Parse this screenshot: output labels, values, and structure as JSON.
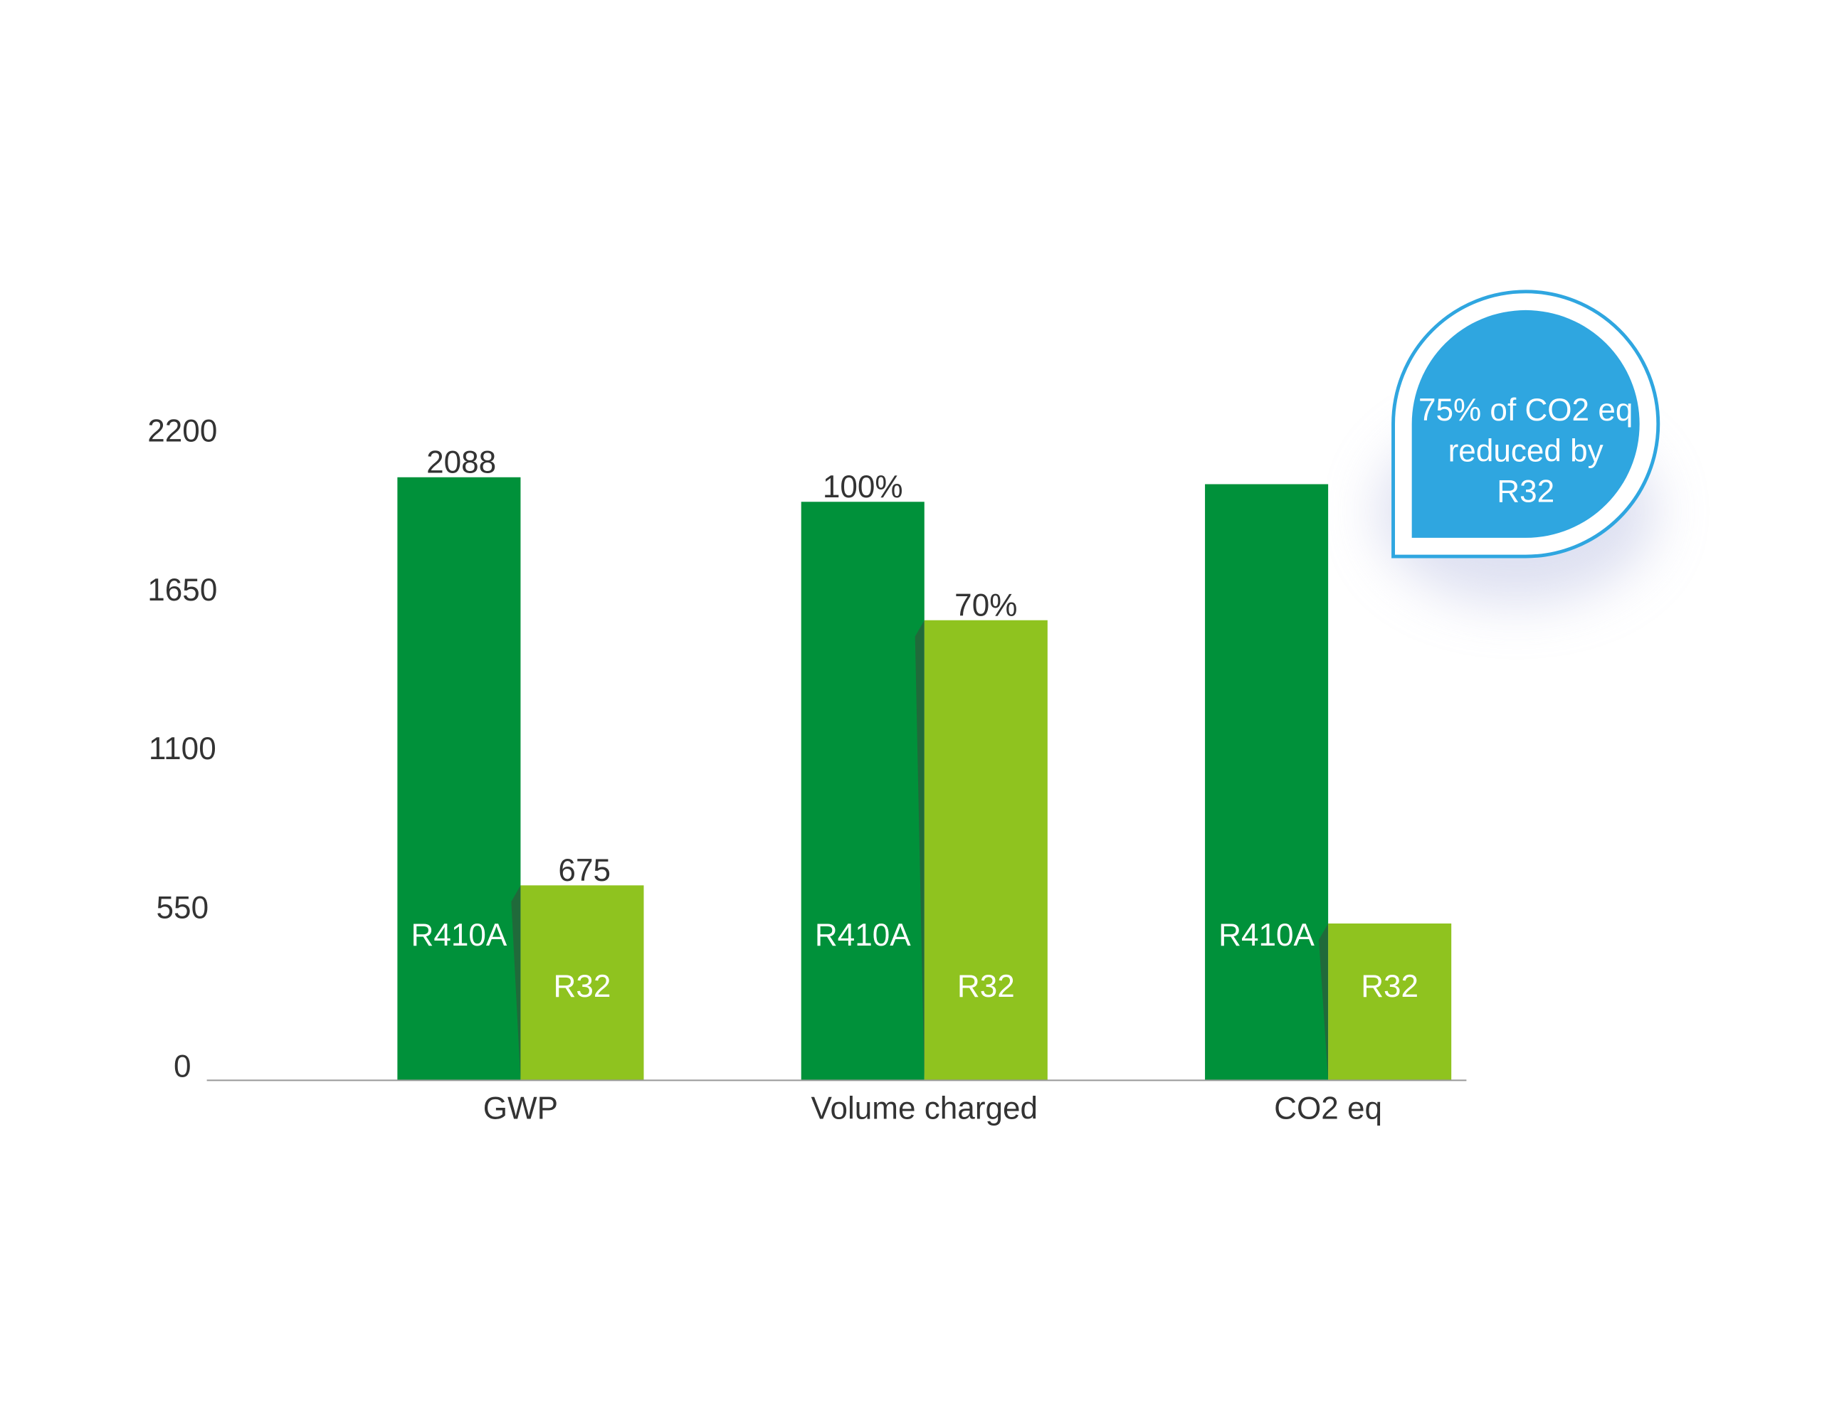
{
  "chart_data": {
    "type": "bar",
    "categories": [
      "GWP",
      "Volume charged",
      "CO2 eq"
    ],
    "series": [
      {
        "name": "R410A",
        "color": "#00913a",
        "values": [
          2088,
          2003,
          2064
        ]
      },
      {
        "name": "R32",
        "color": "#8fc31f",
        "values": [
          675,
          1593,
          543
        ]
      }
    ],
    "ylim": [
      0,
      2200
    ],
    "yticks": [
      0,
      550,
      1100,
      1650,
      2200
    ],
    "grid": false,
    "annotations": [
      "100%",
      "70%"
    ],
    "callout": [
      "75% of CO2 eq",
      "reduced by",
      "R32"
    ],
    "callout_color": "#2fa6e0"
  }
}
